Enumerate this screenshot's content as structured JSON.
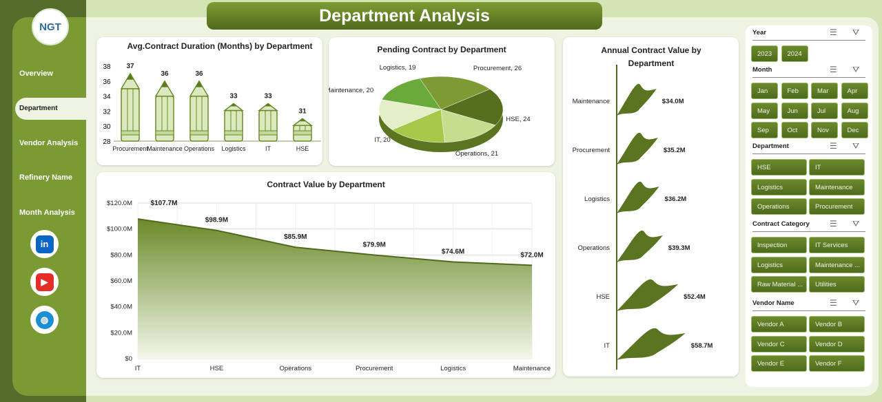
{
  "header": {
    "title": "Department Analysis"
  },
  "logo": {
    "text": "NGT"
  },
  "sidebar": {
    "items": [
      {
        "label": "Overview"
      },
      {
        "label": "Department",
        "active": true
      },
      {
        "label": "Vendor Analysis"
      },
      {
        "label": "Refinery Name"
      },
      {
        "label": "Month Analysis"
      }
    ],
    "social": [
      {
        "icon": "linkedin-icon",
        "text": "in",
        "color": "#0a66c2"
      },
      {
        "icon": "youtube-icon",
        "text": "▶",
        "color": "#e52d27"
      },
      {
        "icon": "globe-icon",
        "text": "◍",
        "color": "#1a8fd6"
      }
    ]
  },
  "colors": {
    "accent": "#6b8a2a",
    "dark": "#4f6a1c"
  },
  "filters": [
    {
      "title": "Year",
      "items": [
        "2023",
        "2024"
      ],
      "cols": 4
    },
    {
      "title": "Month",
      "items": [
        "Jan",
        "Feb",
        "Mar",
        "Apr",
        "May",
        "Jun",
        "Jul",
        "Aug",
        "Sep",
        "Oct",
        "Nov",
        "Dec"
      ],
      "cols": 4
    },
    {
      "title": "Department",
      "items": [
        "HSE",
        "IT",
        "Logistics",
        "Maintenance",
        "Operations",
        "Procurement"
      ],
      "cols": 2
    },
    {
      "title": "Contract Category",
      "items": [
        "Inspection",
        "IT Services",
        "Logistics",
        "Maintenance ...",
        "Raw Material ...",
        "Utilities"
      ],
      "cols": 2
    },
    {
      "title": "Vendor Name",
      "items": [
        "Vendor A",
        "Vendor B",
        "Vendor C",
        "Vendor D",
        "Vendor E",
        "Vendor F"
      ],
      "cols": 2
    }
  ],
  "chart_data": [
    {
      "type": "bar",
      "title": "Avg.Contract Duration (Months) by Department",
      "categories": [
        "Procurement",
        "Maintenance",
        "Operations",
        "Logistics",
        "IT",
        "HSE"
      ],
      "values": [
        37,
        36,
        36,
        33,
        33,
        31
      ],
      "ylim": [
        28,
        38
      ],
      "yticks": [
        28,
        30,
        32,
        34,
        36,
        38
      ]
    },
    {
      "type": "pie",
      "title": "Pending Contract by Department",
      "categories": [
        "Procurement",
        "HSE",
        "Operations",
        "IT",
        "Maintenance",
        "Logistics"
      ],
      "values": [
        26,
        24,
        21,
        20,
        20,
        19
      ],
      "colors": [
        "#7d9a34",
        "#556f1f",
        "#c6dc8e",
        "#a7c94a",
        "#e3efc9",
        "#6aaa3a"
      ]
    },
    {
      "type": "area",
      "title": "Contract Value by Department",
      "categories": [
        "IT",
        "HSE",
        "Operations",
        "Procurement",
        "Logistics",
        "Maintenance"
      ],
      "values": [
        107.7,
        98.9,
        85.9,
        79.9,
        74.6,
        72.0
      ],
      "labels": [
        "$107.7M",
        "$98.9M",
        "$85.9M",
        "$79.9M",
        "$74.6M",
        "$72.0M"
      ],
      "ylim": [
        0,
        120
      ],
      "yticks": [
        "$0",
        "$20.0M",
        "$40.0M",
        "$60.0M",
        "$80.0M",
        "$100.0M",
        "$120.0M"
      ]
    },
    {
      "type": "bar",
      "orientation": "horizontal",
      "title": "Annual Contract Value by Department",
      "categories": [
        "Maintenance",
        "Procurement",
        "Logistics",
        "Operations",
        "HSE",
        "IT"
      ],
      "values": [
        34.0,
        35.2,
        36.2,
        39.3,
        52.4,
        58.7
      ],
      "labels": [
        "$34.0M",
        "$35.2M",
        "$36.2M",
        "$39.3M",
        "$52.4M",
        "$58.7M"
      ]
    }
  ]
}
